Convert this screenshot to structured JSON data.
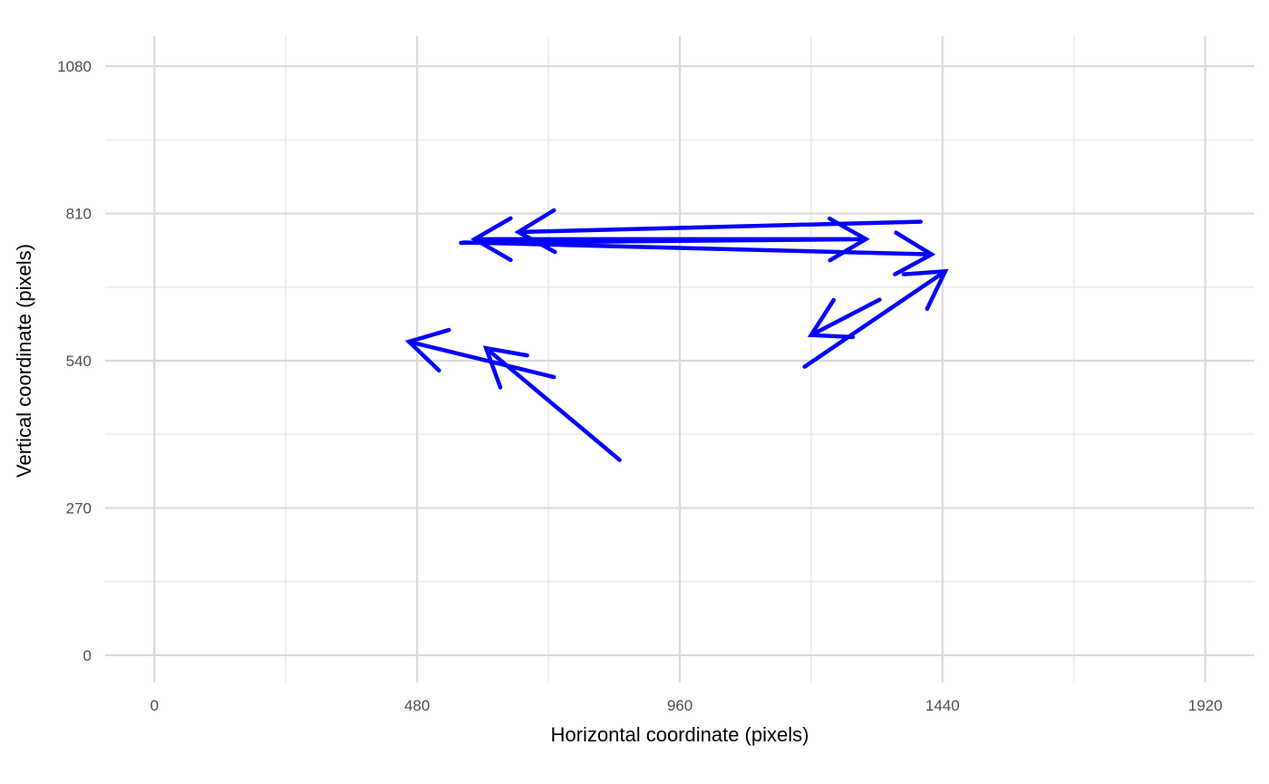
{
  "chart_data": {
    "type": "line",
    "title": "",
    "xlabel": "Horizontal coordinate (pixels)",
    "ylabel": "Vertical coordinate (pixels)",
    "xlim": [
      -90,
      2010
    ],
    "ylim": [
      -50,
      1135
    ],
    "x_ticks": [
      0,
      480,
      960,
      1440,
      1920
    ],
    "y_ticks": [
      0,
      270,
      540,
      810,
      1080
    ],
    "x_minor_ticks": [
      240,
      720,
      1200,
      1680
    ],
    "y_minor_ticks": [
      135,
      405,
      675,
      945
    ],
    "grid": true,
    "legend": "none",
    "colors": {
      "arrow": "#0000ff",
      "grid_major": "#d9d9d9",
      "grid_minor": "#ebebeb"
    },
    "series": [
      {
        "values": [
          {
            "x": 850,
            "y": 358
          },
          {
            "x": 606,
            "y": 563
          },
          {
            "x": 730,
            "y": 510
          },
          {
            "x": 465,
            "y": 575
          },
          {
            "x": 1188,
            "y": 529
          },
          {
            "x": 1445,
            "y": 704
          },
          {
            "x": 1325,
            "y": 652
          },
          {
            "x": 1200,
            "y": 587
          },
          {
            "x": 1400,
            "y": 795
          },
          {
            "x": 665,
            "y": 776
          },
          {
            "x": 560,
            "y": 756
          },
          {
            "x": 1300,
            "y": 763
          },
          {
            "x": 1270,
            "y": 763
          },
          {
            "x": 585,
            "y": 763
          },
          {
            "x": 565,
            "y": 757
          },
          {
            "x": 1420,
            "y": 735
          }
        ]
      }
    ],
    "arrows": [
      {
        "from": 0,
        "to": 1
      },
      {
        "from": 2,
        "to": 3
      },
      {
        "from": 4,
        "to": 5
      },
      {
        "from": 6,
        "to": 7
      },
      {
        "from": 8,
        "to": 9
      },
      {
        "from": 10,
        "to": 11
      },
      {
        "from": 12,
        "to": 13
      },
      {
        "from": 14,
        "to": 15
      }
    ]
  }
}
